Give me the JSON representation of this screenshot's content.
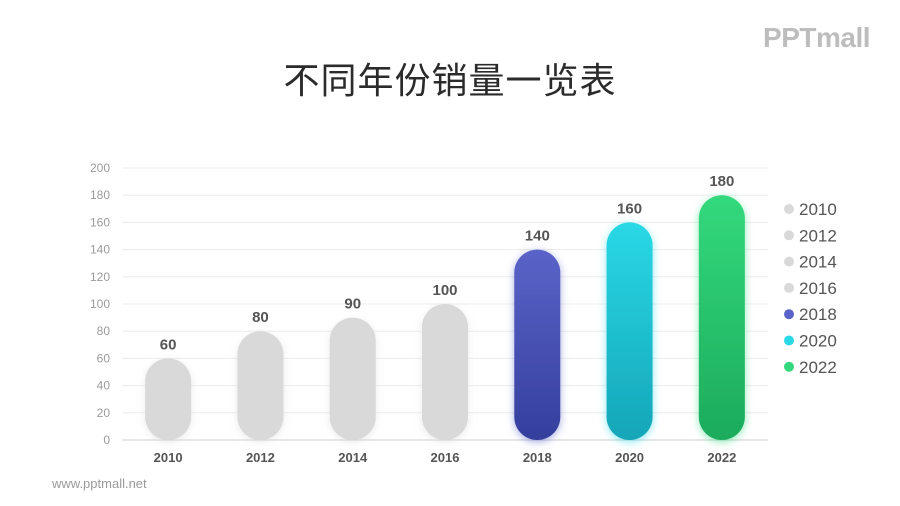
{
  "logo_text": "PPTmall",
  "footer_text": "www.pptmall.net",
  "chart_data": {
    "type": "bar",
    "title": "不同年份销量一览表",
    "categories": [
      "2010",
      "2012",
      "2014",
      "2016",
      "2018",
      "2020",
      "2022"
    ],
    "values": [
      60,
      80,
      90,
      100,
      140,
      160,
      180
    ],
    "ylim": [
      0,
      200
    ],
    "yticks": [
      0,
      20,
      40,
      60,
      80,
      100,
      120,
      140,
      160,
      180,
      200
    ],
    "grid": true,
    "legend": "right",
    "legend_entries": [
      "2010",
      "2012",
      "2014",
      "2016",
      "2018",
      "2020",
      "2022"
    ],
    "colors": [
      [
        "#d9d9d9",
        "#d9d9d9"
      ],
      [
        "#d9d9d9",
        "#d9d9d9"
      ],
      [
        "#d9d9d9",
        "#d9d9d9"
      ],
      [
        "#d9d9d9",
        "#d9d9d9"
      ],
      [
        "#5a63c8",
        "#343f9c"
      ],
      [
        "#2ad8e6",
        "#14a6b8"
      ],
      [
        "#33d97c",
        "#1cab5c"
      ]
    ]
  }
}
